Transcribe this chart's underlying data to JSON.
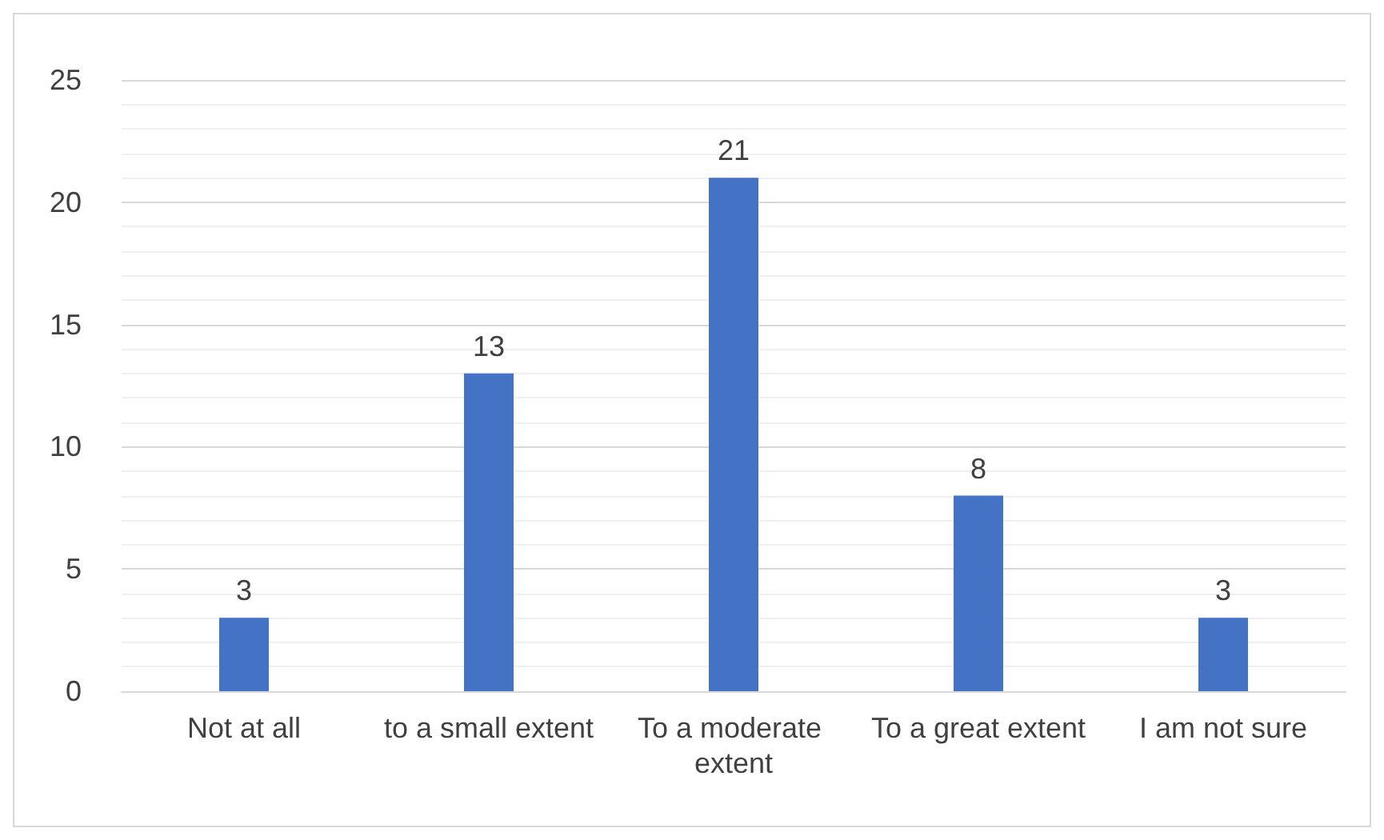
{
  "chart_data": {
    "type": "bar",
    "categories": [
      "Not at all",
      "to a small extent",
      "To a moderate extent",
      "To a great extent",
      "I am not sure"
    ],
    "values": [
      3,
      13,
      21,
      8,
      3
    ],
    "color": "#4472c4",
    "ylim": [
      0,
      25
    ],
    "yticks": [
      0,
      5,
      10,
      15,
      20,
      25
    ],
    "grid": "y",
    "data_labels": true
  }
}
